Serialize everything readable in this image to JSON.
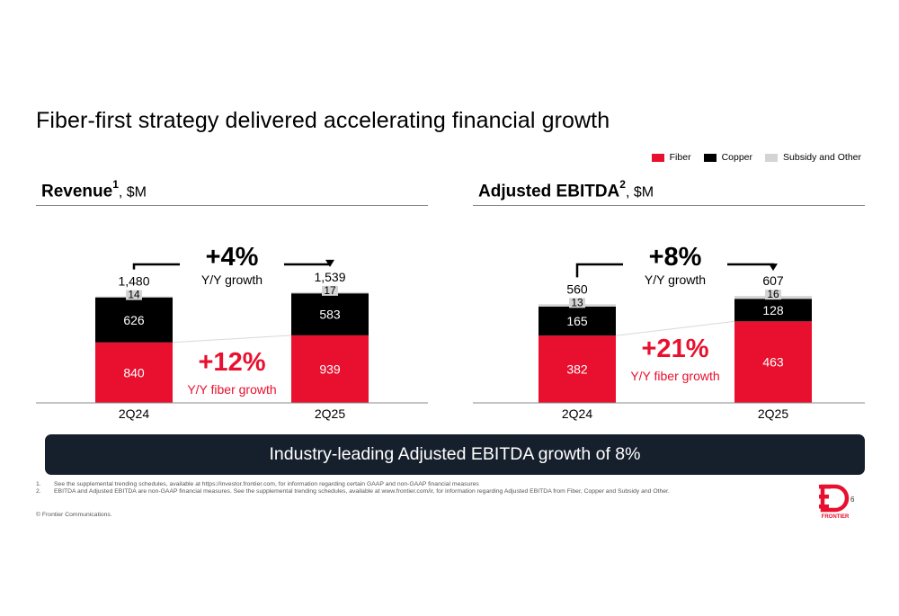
{
  "slide": {
    "title": "Fiber-first strategy delivered accelerating financial growth",
    "banner": "Industry-leading Adjusted EBITDA growth of 8%",
    "footnotes": [
      {
        "num": "1.",
        "text": "See the supplemental trending schedules, available at https://investor.frontier.com, for information regarding certain GAAP and non-GAAP financial measures"
      },
      {
        "num": "2.",
        "text": "EBITDA and Adjusted EBITDA are non-GAAP financial measures.  See the supplemental trending schedules, available at www.frontier.com/ir, for information regarding Adjusted EBITDA from Fiber, Copper and Subsidy and Other."
      }
    ],
    "copyright": "© Frontier Communications.",
    "page_number": "6",
    "logo_text": "FRONTIER"
  },
  "legend": [
    {
      "label": "Fiber",
      "color": "#e8102e"
    },
    {
      "label": "Copper",
      "color": "#000000"
    },
    {
      "label": "Subsidy and Other",
      "color": "#d4d4d4"
    }
  ],
  "chart_data": [
    {
      "type": "bar",
      "stacked": true,
      "title": "Revenue",
      "title_footnote": "1",
      "unit": ", $M",
      "categories": [
        "2Q24",
        "2Q25"
      ],
      "series": [
        {
          "name": "Fiber",
          "values": [
            840,
            939
          ],
          "color": "#e8102e"
        },
        {
          "name": "Copper",
          "values": [
            626,
            583
          ],
          "color": "#000000"
        },
        {
          "name": "Subsidy and Other",
          "values": [
            14,
            17
          ],
          "color": "#d4d4d4"
        }
      ],
      "totals": [
        "1,480",
        "1,539"
      ],
      "total_growth": {
        "value": "+4%",
        "label": "Y/Y growth"
      },
      "fiber_growth": {
        "value": "+12%",
        "label": "Y/Y fiber growth"
      },
      "ylim": [
        0,
        1750
      ]
    },
    {
      "type": "bar",
      "stacked": true,
      "title": "Adjusted EBITDA",
      "title_footnote": "2",
      "unit": ", $M",
      "categories": [
        "2Q24",
        "2Q25"
      ],
      "series": [
        {
          "name": "Fiber",
          "values": [
            382,
            463
          ],
          "color": "#e8102e"
        },
        {
          "name": "Copper",
          "values": [
            165,
            128
          ],
          "color": "#000000"
        },
        {
          "name": "Subsidy and Other",
          "values": [
            13,
            16
          ],
          "color": "#d4d4d4"
        }
      ],
      "totals": [
        "560",
        "607"
      ],
      "total_growth": {
        "value": "+8%",
        "label": "Y/Y growth"
      },
      "fiber_growth": {
        "value": "+21%",
        "label": "Y/Y fiber growth"
      },
      "ylim": [
        0,
        715
      ]
    }
  ]
}
